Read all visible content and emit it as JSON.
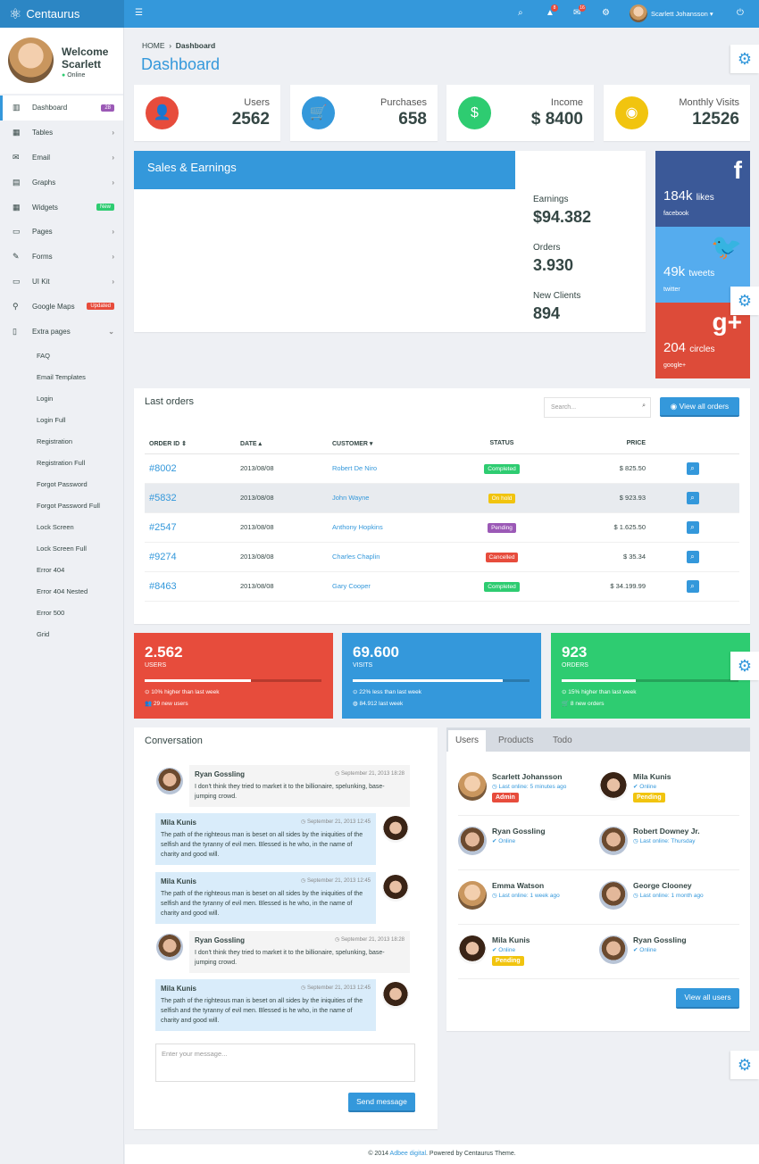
{
  "header": {
    "brand": "Centaurus",
    "user_name": "Scarlett Johansson",
    "alerts_count": "8",
    "messages_count": "16"
  },
  "sidebar": {
    "welcome": "Welcome",
    "name": "Scarlett",
    "status": "Online",
    "items": [
      {
        "label": "Dashboard",
        "icon": "▥",
        "badge": "28",
        "badge_color": "#9b59b6"
      },
      {
        "label": "Tables",
        "icon": "▦",
        "chevron": "›"
      },
      {
        "label": "Email",
        "icon": "✉",
        "chevron": "›"
      },
      {
        "label": "Graphs",
        "icon": "▤",
        "chevron": "›"
      },
      {
        "label": "Widgets",
        "icon": "▦",
        "badge": "New",
        "badge_color": "#2ecc71"
      },
      {
        "label": "Pages",
        "icon": "▭",
        "chevron": "›"
      },
      {
        "label": "Forms",
        "icon": "✎",
        "chevron": "›"
      },
      {
        "label": "UI Kit",
        "icon": "▭",
        "chevron": "›"
      },
      {
        "label": "Google Maps",
        "icon": "⚲",
        "badge": "Updated",
        "badge_color": "#e74c3c"
      },
      {
        "label": "Extra pages",
        "icon": "▯",
        "chevron": "⌄"
      }
    ],
    "subitems": [
      "FAQ",
      "Email Templates",
      "Login",
      "Login Full",
      "Registration",
      "Registration Full",
      "Forgot Password",
      "Forgot Password Full",
      "Lock Screen",
      "Lock Screen Full",
      "Error 404",
      "Error 404 Nested",
      "Error 500",
      "Grid"
    ]
  },
  "breadcrumb": {
    "home": "HOME",
    "current": "Dashboard"
  },
  "page_title": "Dashboard",
  "stats": [
    {
      "label": "Users",
      "value": "2562",
      "color": "#e74c3c",
      "icon": "👤"
    },
    {
      "label": "Purchases",
      "value": "658",
      "color": "#3498db",
      "icon": "🛒"
    },
    {
      "label": "Income",
      "value": "$ 8400",
      "color": "#2ecc71",
      "icon": "$"
    },
    {
      "label": "Monthly Visits",
      "value": "12526",
      "color": "#f1c40f",
      "icon": "◉"
    }
  ],
  "sales": {
    "title": "Sales & Earnings",
    "earnings_label": "Earnings",
    "earnings": "$94.382",
    "orders_label": "Orders",
    "orders": "3.930",
    "clients_label": "New Clients",
    "clients": "894"
  },
  "social": [
    {
      "value": "184k",
      "unit": "likes",
      "name": "facebook",
      "icon": "f",
      "color": "#3b5998"
    },
    {
      "value": "49k",
      "unit": "tweets",
      "name": "twitter",
      "icon": "🐦",
      "color": "#55acee"
    },
    {
      "value": "204",
      "unit": "circles",
      "name": "google+",
      "icon": "g+",
      "color": "#dd4b39"
    }
  ],
  "orders": {
    "title": "Last orders",
    "search_placeholder": "Search...",
    "view_all": "View all orders",
    "columns": [
      "ORDER ID ⇕",
      "DATE ▴",
      "CUSTOMER ▾",
      "STATUS",
      "PRICE"
    ],
    "rows": [
      {
        "id": "#8002",
        "date": "2013/08/08",
        "customer": "Robert De Niro",
        "status": "Completed",
        "status_color": "#2ecc71",
        "price": "$ 825.50"
      },
      {
        "id": "#5832",
        "date": "2013/08/08",
        "customer": "John Wayne",
        "status": "On hold",
        "status_color": "#f1c40f",
        "price": "$ 923.93"
      },
      {
        "id": "#2547",
        "date": "2013/08/08",
        "customer": "Anthony Hopkins",
        "status": "Pending",
        "status_color": "#9b59b6",
        "price": "$ 1.625.50"
      },
      {
        "id": "#9274",
        "date": "2013/08/08",
        "customer": "Charles Chaplin",
        "status": "Cancelled",
        "status_color": "#e74c3c",
        "price": "$ 35.34"
      },
      {
        "id": "#8463",
        "date": "2013/08/08",
        "customer": "Gary Cooper",
        "status": "Completed",
        "status_color": "#2ecc71",
        "price": "$ 34.199.99"
      }
    ]
  },
  "summary": [
    {
      "value": "2.562",
      "label": "USERS",
      "progress": 60,
      "line1": "10% higher than last week",
      "line2": "29 new users",
      "color": "#e74c3c",
      "dark": "#b83a2e"
    },
    {
      "value": "69.600",
      "label": "VISITS",
      "progress": 85,
      "line1": "22% less than last week",
      "line2": "84.912 last week",
      "color": "#3498db",
      "dark": "#2a7aae"
    },
    {
      "value": "923",
      "label": "ORDERS",
      "progress": 42,
      "line1": "15% higher than last week",
      "line2": "8 new orders",
      "color": "#2ecc71",
      "dark": "#25a35a"
    }
  ],
  "conversation": {
    "title": "Conversation",
    "placeholder": "Enter your message...",
    "send": "Send message",
    "messages": [
      {
        "name": "Ryan Gossling",
        "time": "September 21, 2013 18:28",
        "text": "I don't think they tried to market it to the billionaire, spelunking, base-jumping crowd.",
        "side": "left"
      },
      {
        "name": "Mila Kunis",
        "time": "September 21, 2013 12:45",
        "text": "The path of the righteous man is beset on all sides by the iniquities of the selfish and the tyranny of evil men. Blessed is he who, in the name of charity and good will.",
        "side": "right"
      },
      {
        "name": "Mila Kunis",
        "time": "September 21, 2013 12:45",
        "text": "The path of the righteous man is beset on all sides by the iniquities of the selfish and the tyranny of evil men. Blessed is he who, in the name of charity and good will.",
        "side": "right"
      },
      {
        "name": "Ryan Gossling",
        "time": "September 21, 2013 18:28",
        "text": "I don't think they tried to market it to the billionaire, spelunking, base-jumping crowd.",
        "side": "left"
      },
      {
        "name": "Mila Kunis",
        "time": "September 21, 2013 12:45",
        "text": "The path of the righteous man is beset on all sides by the iniquities of the selfish and the tyranny of evil men. Blessed is he who, in the name of charity and good will.",
        "side": "right"
      }
    ]
  },
  "users_panel": {
    "tabs": [
      "Users",
      "Products",
      "Todo"
    ],
    "view_all": "View all users",
    "users": [
      {
        "name": "Scarlett Johansson",
        "status": "Last online: 5 minutes ago",
        "badge": "Admin",
        "badge_color": "#e74c3c"
      },
      {
        "name": "Mila Kunis",
        "status": "Online",
        "badge": "Pending",
        "badge_color": "#f1c40f"
      },
      {
        "name": "Ryan Gossling",
        "status": "Online"
      },
      {
        "name": "Robert Downey Jr.",
        "status": "Last online: Thursday"
      },
      {
        "name": "Emma Watson",
        "status": "Last online: 1 week ago"
      },
      {
        "name": "George Clooney",
        "status": "Last online: 1 month ago"
      },
      {
        "name": "Mila Kunis",
        "status": "Online",
        "badge": "Pending",
        "badge_color": "#f1c40f"
      },
      {
        "name": "Ryan Gossling",
        "status": "Online"
      }
    ]
  },
  "footer": {
    "prefix": "© 2014 ",
    "link": "Adbee digital",
    "suffix": ". Powered by Centaurus Theme."
  }
}
